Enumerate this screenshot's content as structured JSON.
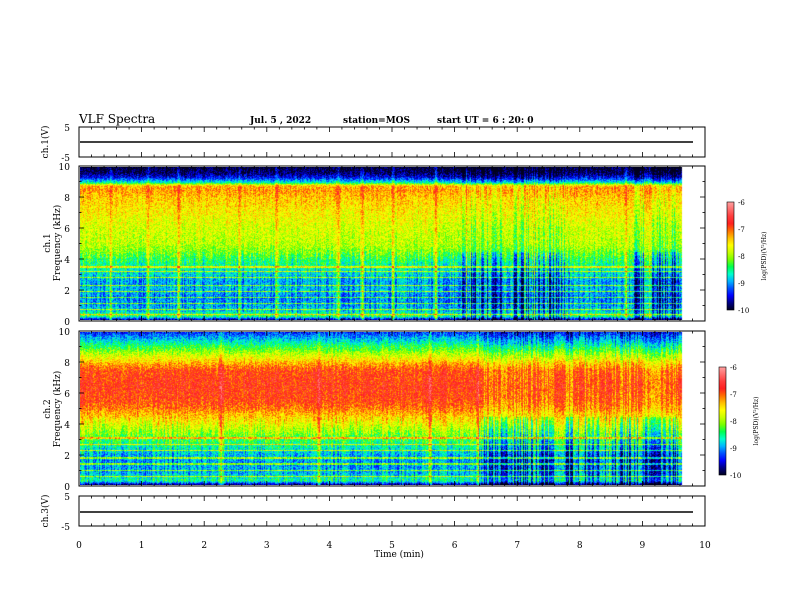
{
  "header": {
    "title": "VLF Spectra",
    "date": "Jul. 5 , 2022",
    "station": "station=MOS",
    "start": "start UT = 6 : 20: 0"
  },
  "chart_data": [
    {
      "type": "line",
      "panel": "ch1-waveform",
      "ylabel": "ch.1(V)",
      "ylim": [
        -5,
        5
      ],
      "y_ticks": [
        "5",
        "-5"
      ],
      "xlim": [
        0,
        10
      ],
      "series": [
        {
          "x": [
            0,
            9.82
          ],
          "values": [
            -0.3,
            -0.3
          ]
        }
      ]
    },
    {
      "type": "heatmap",
      "panel": "ch1-spectrogram",
      "ylabel": "ch.1\nFrequency (kHz)",
      "ylim": [
        0,
        10
      ],
      "y_ticks": [
        "0",
        "2",
        "4",
        "6",
        "8",
        "10"
      ],
      "xlim": [
        0,
        10
      ],
      "data_end_min": 9.82,
      "colorbar": {
        "label": "log(PSD)(V²/Hz)",
        "range": [
          -10,
          -6
        ],
        "ticks": [
          "-6",
          "-7",
          "-8",
          "-9",
          "-10"
        ]
      },
      "profile": {
        "freq_khz": [
          0,
          0.3,
          0.6,
          1.0,
          1.5,
          2.0,
          2.5,
          3.0,
          3.5,
          4.0,
          4.5,
          5.0,
          6.0,
          7.0,
          8.0,
          8.5,
          8.8,
          9.0,
          9.3,
          9.6,
          10.0
        ],
        "log_psd": [
          -10,
          -8.3,
          -8.8,
          -9.0,
          -9.1,
          -8.9,
          -9.0,
          -8.8,
          -8.6,
          -8.4,
          -8.1,
          -7.9,
          -7.8,
          -7.6,
          -7.4,
          -7.2,
          -7.3,
          -8.6,
          -9.4,
          -9.8,
          -10
        ]
      },
      "tone_lines_khz": [
        0.4,
        0.7,
        1.1,
        1.5,
        1.9,
        2.3,
        2.8,
        3.2,
        3.5
      ],
      "bright_bursts_min": [
        0.5,
        1.1,
        1.6,
        2.6,
        3.2,
        4.2,
        4.6,
        5.1,
        5.8,
        6.3,
        7.4,
        8.9,
        9.3
      ],
      "quiet_bands_min": [
        [
          6.2,
          8.0
        ],
        [
          9.0,
          9.8
        ]
      ]
    },
    {
      "type": "heatmap",
      "panel": "ch2-spectrogram",
      "ylabel": "ch.2\nFrequency (kHz)",
      "ylim": [
        0,
        10
      ],
      "y_ticks": [
        "0",
        "2",
        "4",
        "6",
        "8",
        "10"
      ],
      "xlim": [
        0,
        10
      ],
      "data_end_min": 9.82,
      "colorbar": {
        "label": "log(PSD)(V²/Hz)",
        "range": [
          -10,
          -6
        ],
        "ticks": [
          "-6",
          "-7",
          "-8",
          "-9",
          "-10"
        ]
      },
      "profile": {
        "freq_khz": [
          0,
          0.3,
          0.8,
          1.5,
          2.0,
          2.5,
          3.0,
          3.5,
          4.0,
          4.5,
          5.0,
          5.5,
          6.5,
          7.5,
          8.0,
          8.5,
          9.0,
          9.5,
          10.0
        ],
        "log_psd": [
          -10,
          -8.5,
          -8.9,
          -9.0,
          -8.9,
          -8.6,
          -8.3,
          -8.0,
          -7.7,
          -7.4,
          -7.1,
          -6.9,
          -6.8,
          -6.9,
          -7.3,
          -7.8,
          -8.3,
          -8.8,
          -9.3
        ]
      },
      "tone_lines_khz": [
        0.6,
        1.0,
        1.4,
        1.8,
        2.3,
        2.7,
        3.1
      ],
      "bright_bursts_min": [
        2.3,
        3.9,
        5.7,
        6.5,
        8.6
      ],
      "quiet_bands_min": [
        [
          6.5,
          9.8
        ]
      ]
    },
    {
      "type": "line",
      "panel": "ch3-waveform",
      "ylabel": "ch.3(V)",
      "ylim": [
        -5,
        5
      ],
      "y_ticks": [
        "5",
        "-5"
      ],
      "xlim": [
        0,
        10
      ],
      "series": [
        {
          "x": [
            0,
            9.82
          ],
          "values": [
            -0.3,
            -0.3
          ]
        }
      ]
    }
  ],
  "xaxis": {
    "label": "Time (min)",
    "ticks": [
      "0",
      "1",
      "2",
      "3",
      "4",
      "5",
      "6",
      "7",
      "8",
      "9",
      "10"
    ]
  },
  "colormap": [
    "#00001e",
    "#000084",
    "#0000ff",
    "#0050ff",
    "#00b4ff",
    "#00ffcc",
    "#00ff50",
    "#78ff00",
    "#c8ff00",
    "#ffff00",
    "#ffc000",
    "#ff7000",
    "#ff2020",
    "#ff3c3c",
    "#ff6e6e",
    "#ffa0a0"
  ]
}
